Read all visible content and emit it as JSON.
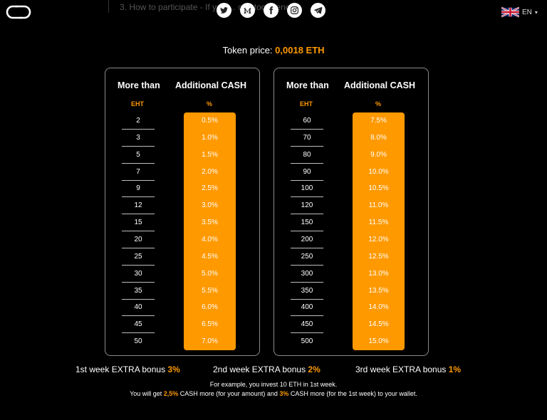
{
  "header": {
    "logo_icon": "link-logo-icon",
    "background_text": "3. How to participate - If you ... cryptocurrency:",
    "socials": [
      {
        "name": "twitter-icon"
      },
      {
        "name": "medium-icon"
      },
      {
        "name": "facebook-icon"
      },
      {
        "name": "instagram-icon"
      },
      {
        "name": "telegram-icon"
      }
    ],
    "language": {
      "flag": "uk-flag-icon",
      "label": "EN",
      "caret": "▾"
    }
  },
  "token_price": {
    "label": "Token price: ",
    "value": "0,0018 ETH"
  },
  "tables": [
    {
      "col1_header": "More than",
      "col2_header": "Additional CASH",
      "col1_unit": "EHT",
      "col2_unit": "%",
      "rows": [
        {
          "amount": "2",
          "percent": "0.5%"
        },
        {
          "amount": "3",
          "percent": "1.0%"
        },
        {
          "amount": "5",
          "percent": "1.5%"
        },
        {
          "amount": "7",
          "percent": "2.0%"
        },
        {
          "amount": "9",
          "percent": "2.5%"
        },
        {
          "amount": "12",
          "percent": "3.0%"
        },
        {
          "amount": "15",
          "percent": "3.5%"
        },
        {
          "amount": "20",
          "percent": "4.0%"
        },
        {
          "amount": "25",
          "percent": "4.5%"
        },
        {
          "amount": "30",
          "percent": "5.0%"
        },
        {
          "amount": "35",
          "percent": "5.5%"
        },
        {
          "amount": "40",
          "percent": "6.0%"
        },
        {
          "amount": "45",
          "percent": "6.5%"
        },
        {
          "amount": "50",
          "percent": "7.0%"
        }
      ]
    },
    {
      "col1_header": "More than",
      "col2_header": "Additional CASH",
      "col1_unit": "EHT",
      "col2_unit": "%",
      "rows": [
        {
          "amount": "60",
          "percent": "7.5%"
        },
        {
          "amount": "70",
          "percent": "8.0%"
        },
        {
          "amount": "80",
          "percent": "9.0%"
        },
        {
          "amount": "90",
          "percent": "10.0%"
        },
        {
          "amount": "100",
          "percent": "10.5%"
        },
        {
          "amount": "120",
          "percent": "11.0%"
        },
        {
          "amount": "150",
          "percent": "11.5%"
        },
        {
          "amount": "200",
          "percent": "12.0%"
        },
        {
          "amount": "250",
          "percent": "12.5%"
        },
        {
          "amount": "300",
          "percent": "13.0%"
        },
        {
          "amount": "350",
          "percent": "13.5%"
        },
        {
          "amount": "400",
          "percent": "14.0%"
        },
        {
          "amount": "450",
          "percent": "14.5%"
        },
        {
          "amount": "500",
          "percent": "15.0%"
        }
      ]
    }
  ],
  "bonuses": [
    {
      "label": "1st week EXTRA bonus ",
      "value": "3%"
    },
    {
      "label": "2nd week EXTRA bonus ",
      "value": "2%"
    },
    {
      "label": "3rd week EXTRA bonus ",
      "value": "1%"
    }
  ],
  "example": {
    "line1": "For example, you invest 10 ETH in 1st week.",
    "line2_a": "You will get ",
    "line2_b": "2,5%",
    "line2_c": " CASH more (for your amount) and ",
    "line2_d": "3%",
    "line2_e": " CASH more (for the 1st week) to your wallet."
  },
  "colors": {
    "accent": "#ff9900",
    "background": "#000000",
    "panel_border": "#8a8a8a"
  }
}
